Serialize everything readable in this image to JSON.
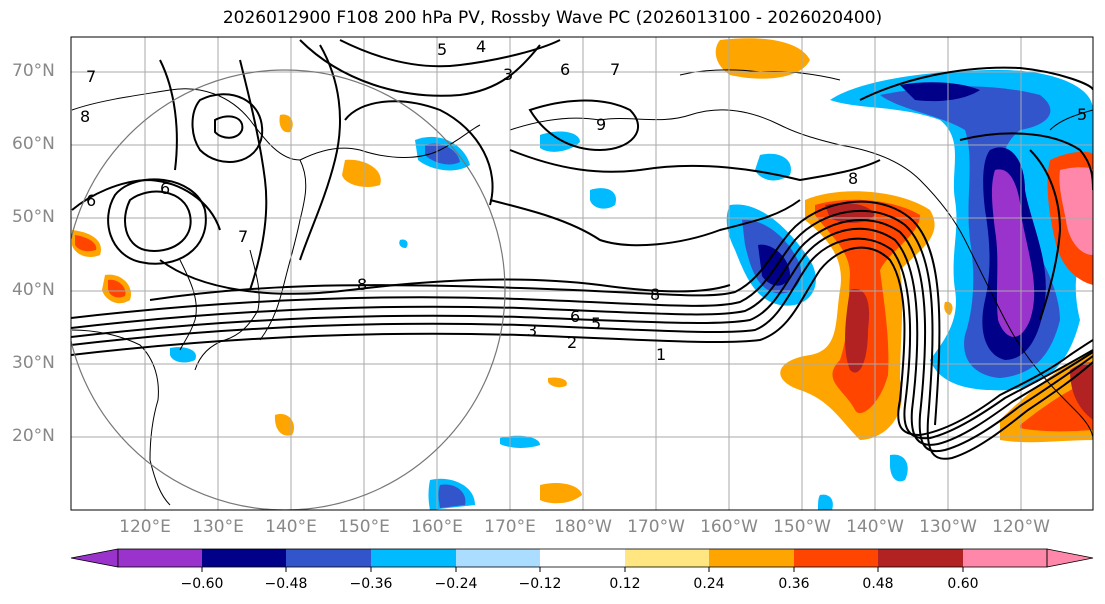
{
  "title": "2026012900 F108 200 hPa PV, Rossby Wave PC (2026013100 - 2026020400)",
  "lat_labels": [
    "70°N",
    "60°N",
    "50°N",
    "40°N",
    "30°N",
    "20°N"
  ],
  "lon_labels": [
    "120°E",
    "130°E",
    "140°E",
    "150°E",
    "160°E",
    "170°E",
    "180°W",
    "170°W",
    "160°W",
    "150°W",
    "140°W",
    "130°W",
    "120°W"
  ],
  "colorbar": {
    "colors": [
      "#9933cc",
      "#000088",
      "#3355cc",
      "#00bbff",
      "#aaddff",
      "#ffffff",
      "#ffe680",
      "#ffa500",
      "#ff4500",
      "#b22222",
      "#ff88aa"
    ],
    "ticks": [
      "−0.60",
      "−0.48",
      "−0.36",
      "−0.24",
      "−0.12",
      "0.12",
      "0.24",
      "0.36",
      "0.48",
      "0.60"
    ]
  },
  "contour_labels": [
    "1",
    "2",
    "3",
    "5",
    "6",
    "8",
    "8",
    "8",
    "9",
    "7",
    "6",
    "5",
    "4",
    "3",
    "6",
    "6",
    "7",
    "8",
    "5",
    "7"
  ],
  "colors": {
    "grid": "#aaaaaa",
    "land": "#000000"
  }
}
